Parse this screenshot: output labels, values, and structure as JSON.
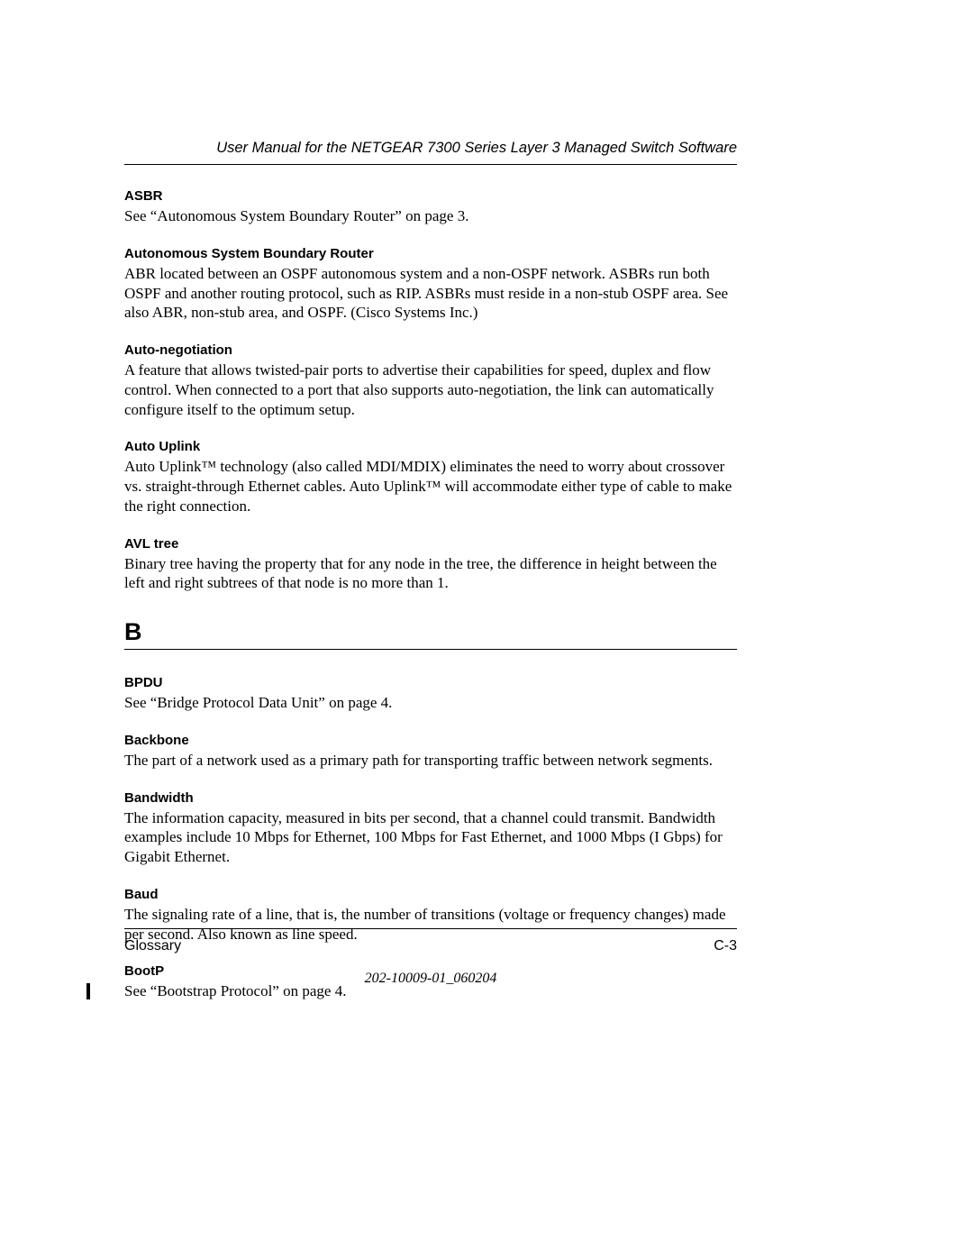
{
  "header": {
    "title": "User Manual for the NETGEAR 7300 Series Layer 3 Managed Switch Software"
  },
  "entries_a": [
    {
      "term": "ASBR",
      "definition": "See “Autonomous System Boundary Router” on page 3."
    },
    {
      "term": "Autonomous System Boundary Router",
      "definition": "ABR located between an OSPF autonomous system and a non-OSPF network. ASBRs run both OSPF and another routing protocol, such as RIP. ASBRs must reside in a non-stub OSPF area. See also ABR, non-stub area, and OSPF. (Cisco Systems Inc.)"
    },
    {
      "term": "Auto-negotiation",
      "definition": "A feature that allows twisted-pair ports to advertise their capabilities for speed, duplex and flow control. When connected to a port that also supports auto-negotiation, the link can automatically configure itself to the optimum setup."
    },
    {
      "term": "Auto Uplink",
      "definition": "Auto Uplink™ technology (also called MDI/MDIX) eliminates the need to worry about crossover vs. straight-through Ethernet cables. Auto Uplink™ will accommodate either type of cable to make the right connection."
    },
    {
      "term": "AVL tree",
      "definition": "Binary tree having the property that for any node in the tree, the difference in height between the left and right subtrees of that node is no more than 1."
    }
  ],
  "section_b": {
    "letter": "B"
  },
  "entries_b": [
    {
      "term": "BPDU",
      "definition": "See “Bridge Protocol Data Unit” on page 4."
    },
    {
      "term": "Backbone",
      "definition": "The part of a network used as a primary path for transporting traffic between network segments."
    },
    {
      "term": "Bandwidth",
      "definition": "The information capacity, measured in bits per second, that a channel could transmit. Bandwidth examples include 10 Mbps for Ethernet, 100 Mbps for Fast Ethernet, and 1000 Mbps (I Gbps) for Gigabit Ethernet."
    },
    {
      "term": "Baud",
      "definition": "The signaling rate of a line, that is, the number of transitions (voltage or frequency changes) made per second. Also known as line speed."
    },
    {
      "term": "BootP",
      "definition": "See “Bootstrap Protocol” on page 4."
    }
  ],
  "footer": {
    "left": "Glossary",
    "right": "C-3",
    "docnum": "202-10009-01_060204"
  }
}
